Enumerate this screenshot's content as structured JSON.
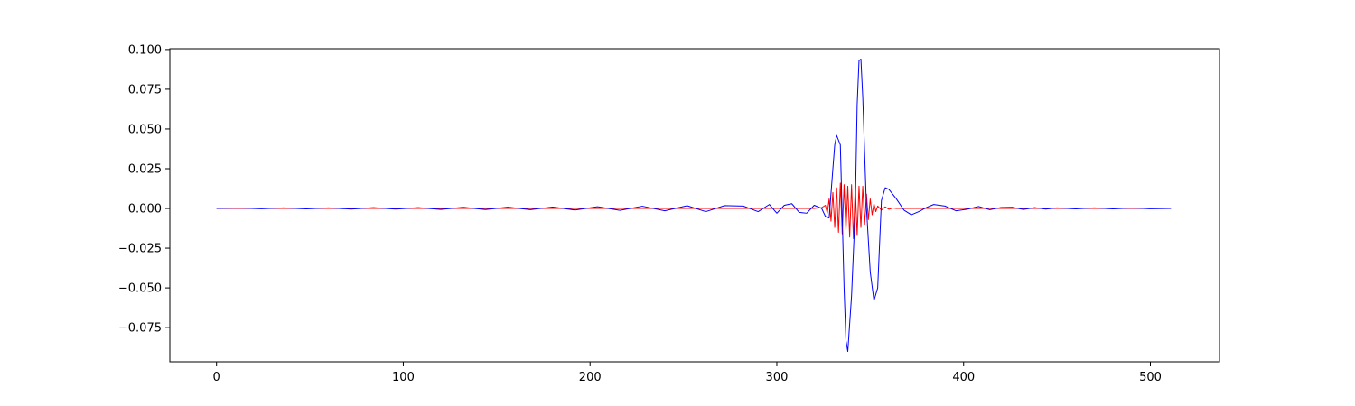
{
  "chart_data": {
    "type": "line",
    "title": "",
    "xlabel": "",
    "ylabel": "",
    "xlim": [
      -25,
      537
    ],
    "ylim": [
      -0.0965,
      0.1005
    ],
    "grid": false,
    "legend": "none",
    "x_ticks": [
      0,
      100,
      200,
      300,
      400,
      500
    ],
    "x_tick_labels": [
      "0",
      "100",
      "200",
      "300",
      "400",
      "500"
    ],
    "y_ticks": [
      0.1,
      0.075,
      0.05,
      0.025,
      0.0,
      -0.025,
      -0.05,
      -0.075
    ],
    "y_tick_labels": [
      "0.100",
      "0.075",
      "0.050",
      "0.025",
      "0.000",
      "−0.025",
      "−0.050",
      "−0.075"
    ],
    "series": [
      {
        "color": "#ff0000",
        "x": [
          0,
          320,
          324,
          326,
          327,
          328,
          329,
          330,
          331,
          332,
          333,
          334,
          335,
          336,
          337,
          338,
          339,
          340,
          341,
          342,
          343,
          344,
          345,
          346,
          347,
          348,
          349,
          350,
          351,
          352,
          353,
          354,
          356,
          358,
          360,
          362,
          364,
          368,
          511
        ],
        "y": [
          0.0,
          0.0,
          0.0005,
          0.002,
          -0.003,
          0.006,
          -0.008,
          0.01,
          -0.012,
          0.013,
          -0.015,
          0.016,
          -0.016,
          0.015,
          -0.014,
          0.014,
          -0.018,
          0.015,
          -0.019,
          0.013,
          -0.017,
          0.014,
          -0.012,
          0.014,
          -0.01,
          0.009,
          -0.007,
          0.006,
          -0.004,
          0.003,
          -0.002,
          0.0015,
          -0.001,
          0.001,
          -0.0005,
          0.0003,
          0.0,
          0.0,
          0.0
        ]
      },
      {
        "color": "#0000ff",
        "x": [
          0,
          12,
          24,
          36,
          48,
          60,
          72,
          84,
          96,
          108,
          120,
          132,
          144,
          156,
          168,
          180,
          192,
          204,
          216,
          228,
          240,
          252,
          262,
          272,
          282,
          290,
          296,
          300,
          304,
          308,
          312,
          316,
          320,
          324,
          326,
          328,
          330,
          331,
          332,
          334,
          336,
          337,
          338,
          340,
          342,
          343,
          344,
          345,
          346,
          348,
          350,
          352,
          354,
          356,
          358,
          360,
          364,
          368,
          372,
          376,
          380,
          384,
          390,
          396,
          402,
          408,
          414,
          420,
          426,
          432,
          438,
          444,
          450,
          460,
          470,
          480,
          490,
          500,
          511
        ],
        "y": [
          0.0,
          0.0003,
          -0.0002,
          0.0004,
          -0.0003,
          0.0004,
          -0.0004,
          0.0005,
          -0.0004,
          0.0005,
          -0.0006,
          0.0007,
          -0.0007,
          0.0008,
          -0.0008,
          0.0009,
          -0.001,
          0.0011,
          -0.0012,
          0.0014,
          -0.0015,
          0.0017,
          -0.002,
          0.0018,
          0.0015,
          -0.002,
          0.0025,
          -0.003,
          0.002,
          0.003,
          -0.0025,
          -0.003,
          0.002,
          0.0,
          -0.005,
          -0.006,
          0.025,
          0.04,
          0.046,
          0.04,
          -0.05,
          -0.083,
          -0.09,
          -0.055,
          0.0,
          0.065,
          0.093,
          0.094,
          0.07,
          0.0,
          -0.04,
          -0.058,
          -0.05,
          0.005,
          0.013,
          0.012,
          0.006,
          -0.001,
          -0.004,
          -0.002,
          0.0005,
          0.0025,
          0.0015,
          -0.0015,
          -0.0005,
          0.0012,
          -0.0008,
          0.0006,
          0.0007,
          -0.0006,
          0.0005,
          -0.0004,
          0.0004,
          -0.0003,
          0.0004,
          -0.0003,
          0.0003,
          -0.0002,
          0.0
        ]
      }
    ]
  }
}
